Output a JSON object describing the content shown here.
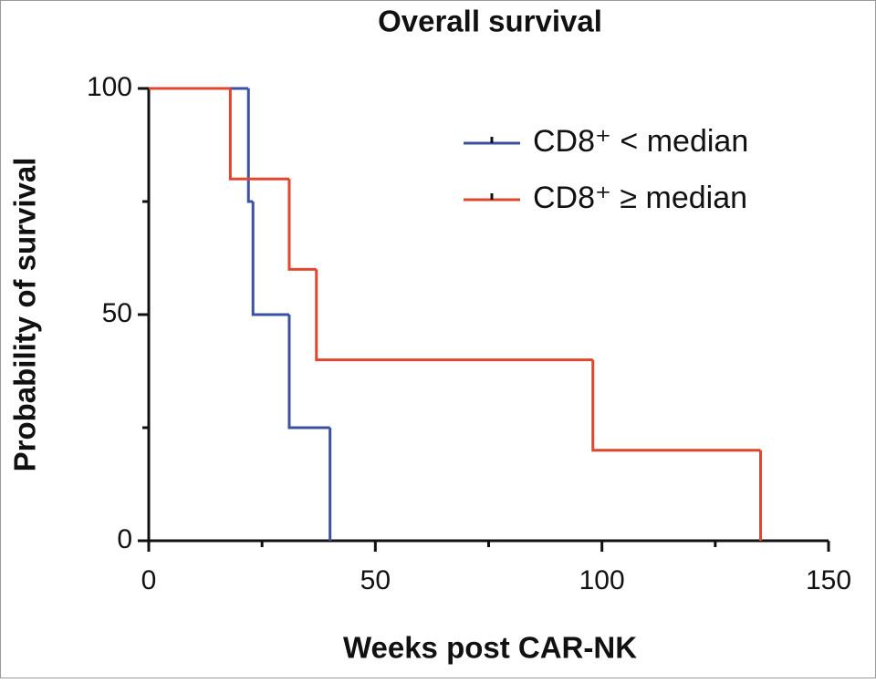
{
  "chart_data": {
    "type": "step",
    "title": "Overall survival",
    "xlabel": "Weeks post CAR-NK",
    "ylabel": "Probability of survival",
    "xlim": [
      0,
      150
    ],
    "xticks": [
      0,
      50,
      100,
      150
    ],
    "x_minor_ticks": [
      25,
      75,
      125
    ],
    "ylim": [
      0,
      100
    ],
    "yticks": [
      0,
      50,
      100
    ],
    "y_minor_ticks": [
      25,
      75
    ],
    "legend": "upper right",
    "series": [
      {
        "name": "CD8⁺ < median",
        "color": "#3b52a3",
        "x": [
          0,
          22,
          23,
          31,
          40
        ],
        "values": [
          100,
          75,
          50,
          25,
          0
        ]
      },
      {
        "name": "CD8⁺ ≥ median",
        "color": "#e0472e",
        "x": [
          0,
          18,
          31,
          37,
          98,
          135
        ],
        "values": [
          100,
          80,
          60,
          40,
          20,
          0
        ]
      }
    ]
  }
}
